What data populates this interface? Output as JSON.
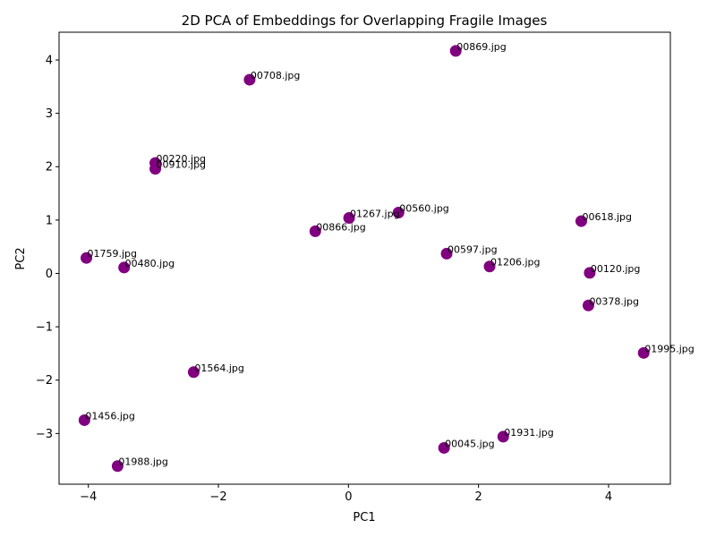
{
  "chart_data": {
    "type": "scatter",
    "title": "2D PCA of Embeddings for Overlapping Fragile Images",
    "xlabel": "PC1",
    "ylabel": "PC2",
    "xlim": [
      -4.45,
      4.95
    ],
    "ylim": [
      -3.95,
      4.52
    ],
    "xticks": [
      -4,
      -2,
      0,
      2,
      4
    ],
    "yticks": [
      -3,
      -2,
      -1,
      0,
      1,
      2,
      3,
      4
    ],
    "xtick_labels": [
      "−4",
      "−2",
      "0",
      "2",
      "4"
    ],
    "ytick_labels": [
      "−3",
      "−2",
      "−1",
      "0",
      "1",
      "2",
      "3",
      "4"
    ],
    "grid": false,
    "marker_color": "#800080",
    "points": [
      {
        "x": 1.65,
        "y": 4.17,
        "label": "00869.jpg"
      },
      {
        "x": -1.52,
        "y": 3.63,
        "label": "00708.jpg"
      },
      {
        "x": -2.97,
        "y": 2.07,
        "label": "00220.jpg"
      },
      {
        "x": -2.97,
        "y": 1.96,
        "label": "00910.jpg"
      },
      {
        "x": 0.01,
        "y": 1.04,
        "label": "01267.jpg"
      },
      {
        "x": 0.77,
        "y": 1.14,
        "label": "00560.jpg"
      },
      {
        "x": 3.58,
        "y": 0.98,
        "label": "00618.jpg"
      },
      {
        "x": -0.51,
        "y": 0.79,
        "label": "00866.jpg"
      },
      {
        "x": -4.03,
        "y": 0.29,
        "label": "01759.jpg"
      },
      {
        "x": -3.45,
        "y": 0.11,
        "label": "00480.jpg"
      },
      {
        "x": 1.51,
        "y": 0.37,
        "label": "00597.jpg"
      },
      {
        "x": 2.17,
        "y": 0.13,
        "label": "01206.jpg"
      },
      {
        "x": 3.71,
        "y": 0.01,
        "label": "00120.jpg"
      },
      {
        "x": 3.69,
        "y": -0.6,
        "label": "00378.jpg"
      },
      {
        "x": 4.54,
        "y": -1.49,
        "label": "01995.jpg"
      },
      {
        "x": -2.38,
        "y": -1.85,
        "label": "01564.jpg"
      },
      {
        "x": -4.06,
        "y": -2.75,
        "label": "01456.jpg"
      },
      {
        "x": 2.38,
        "y": -3.06,
        "label": "01931.jpg"
      },
      {
        "x": 1.47,
        "y": -3.27,
        "label": "00045.jpg"
      },
      {
        "x": -3.55,
        "y": -3.61,
        "label": "01988.jpg"
      }
    ]
  }
}
